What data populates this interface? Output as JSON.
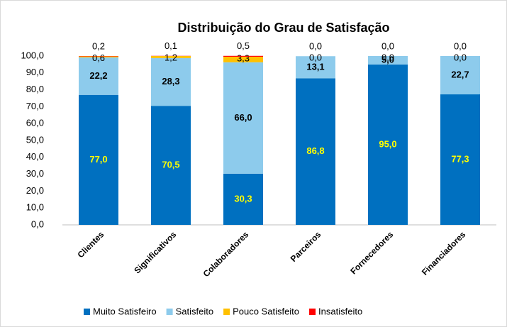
{
  "chart_data": {
    "type": "stacked_bar",
    "title": "Distribuição do Grau de Satisfação",
    "categories": [
      "Clientes",
      "Significativos",
      "Colaboradores",
      "Parceiros",
      "Fornecedores",
      "Financiadores"
    ],
    "series": [
      {
        "name": "Muito Satisfeiro",
        "color": "#0070c0",
        "label_color": "#ffff00",
        "values": [
          77.0,
          70.5,
          30.3,
          86.8,
          95.0,
          77.3
        ],
        "value_labels": [
          "77,0",
          "70,5",
          "30,3",
          "86,8",
          "95,0",
          "77,3"
        ]
      },
      {
        "name": "Satisfeito",
        "color": "#8dcbec",
        "label_color": "#000000",
        "values": [
          22.2,
          28.3,
          66.0,
          13.1,
          5.0,
          22.7
        ],
        "value_labels": [
          "22,2",
          "28,3",
          "66,0",
          "13,1",
          "5,0",
          "22,7"
        ]
      },
      {
        "name": "Pouco Satisfeito",
        "color": "#ffc000",
        "label_color": "#000000",
        "values": [
          0.6,
          1.2,
          3.3,
          0.0,
          0.0,
          0.0
        ],
        "value_labels": [
          "0,6",
          "1,2",
          "3,3",
          "0,0",
          "0,0",
          "0,0"
        ]
      },
      {
        "name": "Insatisfeito",
        "color": "#ff0000",
        "label_color": "#000000",
        "values": [
          0.2,
          0.1,
          0.5,
          0.0,
          0.0,
          0.0
        ],
        "value_labels": [
          "0,2",
          "0,1",
          "0,5",
          "0,0",
          "0,0",
          "0,0"
        ]
      }
    ],
    "ylim": [
      0,
      100
    ],
    "yticks": [
      {
        "value": 0,
        "label": "0,0"
      },
      {
        "value": 10,
        "label": "10,0"
      },
      {
        "value": 20,
        "label": "20,0"
      },
      {
        "value": 30,
        "label": "30,0"
      },
      {
        "value": 40,
        "label": "40,0"
      },
      {
        "value": 50,
        "label": "50,0"
      },
      {
        "value": 60,
        "label": "60,0"
      },
      {
        "value": 70,
        "label": "70,0"
      },
      {
        "value": 80,
        "label": "80,0"
      },
      {
        "value": 90,
        "label": "90,0"
      },
      {
        "value": 100,
        "label": "100,0"
      }
    ],
    "grid": false,
    "legend": "bottom"
  }
}
